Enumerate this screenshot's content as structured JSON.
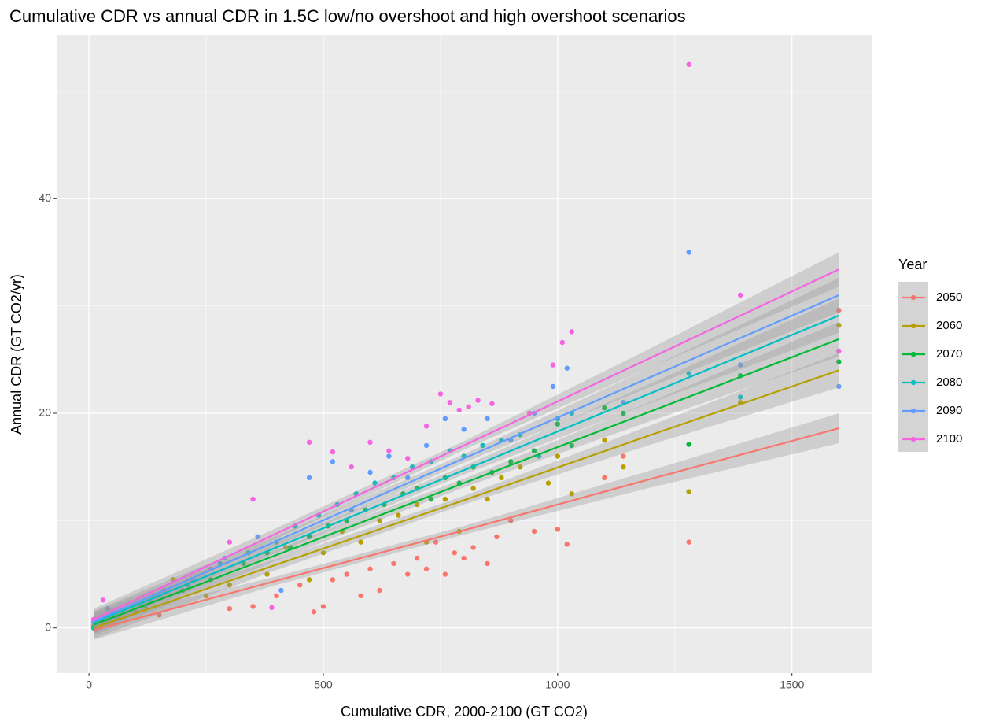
{
  "chart_data": {
    "type": "scatter",
    "title": "Cumulative CDR vs annual CDR in 1.5C low/no overshoot and high overshoot scenarios",
    "x_label": "Cumulative CDR, 2000-2100 (GT CO2)",
    "y_label": "Annual CDR (GT CO2/yr)",
    "legend_title": "Year",
    "xlim": [
      -69,
      1670
    ],
    "ylim": [
      -4.2,
      55.2
    ],
    "xticks": [
      0,
      500,
      1000,
      1500
    ],
    "yticks": [
      0,
      20,
      40
    ],
    "xminor": [
      250,
      750,
      1250
    ],
    "yminor": [
      10,
      30,
      50
    ],
    "grid": true,
    "legend": "right",
    "fit_x": [
      10,
      400,
      800,
      1200,
      1600
    ],
    "series": [
      {
        "name": "2050",
        "color": "#F8766D",
        "x": [
          10,
          30,
          150,
          300,
          350,
          400,
          450,
          480,
          500,
          520,
          550,
          580,
          600,
          620,
          650,
          680,
          700,
          720,
          740,
          760,
          780,
          800,
          820,
          850,
          870,
          900,
          950,
          1000,
          1020,
          1100,
          1140,
          1280,
          1600
        ],
        "values": [
          0,
          0.5,
          1.2,
          1.8,
          2.0,
          3.0,
          4.0,
          1.5,
          2.0,
          4.5,
          5.0,
          3.0,
          5.5,
          3.5,
          6.0,
          5.0,
          6.5,
          5.5,
          8.0,
          5.0,
          7.0,
          6.5,
          7.5,
          6.0,
          8.5,
          10.0,
          9.0,
          9.2,
          7.8,
          14.0,
          16.0,
          8.0,
          29.6
        ],
        "fit": [
          -0.2,
          4.4,
          9.1,
          13.9,
          18.6
        ],
        "fit_lower": [
          -1.1,
          4.0,
          8.7,
          13.1,
          17.2
        ],
        "fit_upper": [
          0.7,
          4.8,
          9.5,
          14.7,
          20.0
        ]
      },
      {
        "name": "2060",
        "color": "#B79F00",
        "x": [
          10,
          40,
          100,
          180,
          250,
          300,
          380,
          420,
          470,
          500,
          540,
          580,
          620,
          660,
          700,
          720,
          760,
          790,
          820,
          850,
          880,
          920,
          980,
          1000,
          1030,
          1100,
          1140,
          1280,
          1390,
          1600
        ],
        "values": [
          0.2,
          0.5,
          1.5,
          4.5,
          3.0,
          4.0,
          5.0,
          7.5,
          4.5,
          7.0,
          9.0,
          8.0,
          10.0,
          10.5,
          11.5,
          8.0,
          12.0,
          9.0,
          13.0,
          12.0,
          14.0,
          15.0,
          13.5,
          16.0,
          12.5,
          17.5,
          15.0,
          12.7,
          21.0,
          28.2
        ],
        "fit": [
          0,
          5.9,
          11.9,
          18.0,
          24.0
        ],
        "fit_lower": [
          -1.0,
          5.4,
          11.5,
          17.1,
          22.4
        ],
        "fit_upper": [
          1.0,
          6.4,
          12.3,
          18.9,
          25.6
        ]
      },
      {
        "name": "2070",
        "color": "#00BA38",
        "x": [
          15,
          60,
          120,
          200,
          260,
          330,
          380,
          430,
          470,
          510,
          550,
          590,
          630,
          670,
          700,
          730,
          760,
          790,
          820,
          860,
          900,
          950,
          1000,
          1030,
          1100,
          1140,
          1280,
          1390,
          1600
        ],
        "values": [
          0.5,
          1.0,
          2.0,
          3.5,
          4.5,
          6.0,
          7.0,
          7.5,
          8.5,
          9.5,
          10.0,
          11.0,
          11.5,
          12.5,
          13.0,
          12.0,
          14.0,
          13.5,
          15.0,
          14.5,
          15.5,
          16.5,
          19.0,
          17.0,
          20.5,
          20.0,
          17.1,
          23.5,
          24.8
        ],
        "fit": [
          0.3,
          6.8,
          13.5,
          20.2,
          26.9
        ],
        "fit_lower": [
          -0.7,
          6.3,
          13.1,
          19.3,
          25.3
        ],
        "fit_upper": [
          1.3,
          7.3,
          13.9,
          21.1,
          28.5
        ]
      },
      {
        "name": "2080",
        "color": "#00BFC4",
        "x": [
          10,
          50,
          130,
          210,
          280,
          340,
          400,
          440,
          490,
          530,
          570,
          610,
          650,
          690,
          730,
          770,
          800,
          840,
          880,
          920,
          960,
          1000,
          1030,
          1140,
          1280,
          1390
        ],
        "values": [
          0,
          1.5,
          2.5,
          4.0,
          6.0,
          7.0,
          8.0,
          9.5,
          10.5,
          11.5,
          12.5,
          13.5,
          14.0,
          15.0,
          15.5,
          16.5,
          16.0,
          17.0,
          17.5,
          18.0,
          16.0,
          19.5,
          20.0,
          21.0,
          23.7,
          21.5
        ],
        "fit": [
          0.5,
          7.5,
          14.7,
          21.9,
          29.1
        ],
        "fit_lower": [
          -0.5,
          7.0,
          14.3,
          21.0,
          27.5
        ],
        "fit_upper": [
          1.5,
          8.0,
          15.1,
          22.8,
          30.7
        ]
      },
      {
        "name": "2090",
        "color": "#619CFF",
        "x": [
          10,
          40,
          140,
          220,
          290,
          360,
          410,
          470,
          520,
          560,
          600,
          640,
          680,
          720,
          760,
          800,
          850,
          900,
          950,
          990,
          1020,
          1140,
          1280,
          1390,
          1600
        ],
        "values": [
          0.5,
          1.8,
          3.0,
          4.5,
          6.5,
          8.5,
          3.5,
          14.0,
          15.5,
          11.0,
          14.5,
          16.0,
          14.0,
          17.0,
          19.5,
          18.5,
          19.5,
          17.5,
          20.0,
          22.5,
          24.2,
          21.0,
          35.0,
          24.5,
          22.5
        ],
        "fit": [
          0.6,
          8.1,
          15.8,
          23.4,
          31.0
        ],
        "fit_lower": [
          -0.4,
          7.6,
          15.4,
          22.5,
          29.4
        ],
        "fit_upper": [
          1.6,
          8.6,
          16.2,
          24.3,
          32.6
        ]
      },
      {
        "name": "2100",
        "color": "#F564E3",
        "x": [
          10,
          30,
          160,
          260,
          300,
          350,
          390,
          470,
          520,
          560,
          600,
          640,
          680,
          720,
          750,
          770,
          790,
          810,
          830,
          860,
          940,
          990,
          1010,
          1030,
          1280,
          1390,
          1600
        ],
        "values": [
          0.8,
          2.6,
          3.5,
          5.5,
          8.0,
          12.0,
          1.9,
          17.3,
          16.4,
          15.0,
          17.3,
          16.5,
          15.8,
          18.8,
          21.8,
          21.0,
          20.3,
          20.6,
          21.2,
          20.9,
          20.0,
          24.5,
          26.6,
          27.6,
          52.5,
          31.0,
          25.8
        ],
        "fit": [
          0.8,
          8.8,
          17.0,
          25.2,
          33.4
        ],
        "fit_lower": [
          -0.2,
          8.3,
          16.6,
          24.3,
          31.8
        ],
        "fit_upper": [
          1.8,
          9.3,
          17.4,
          26.1,
          35.0
        ]
      }
    ]
  }
}
